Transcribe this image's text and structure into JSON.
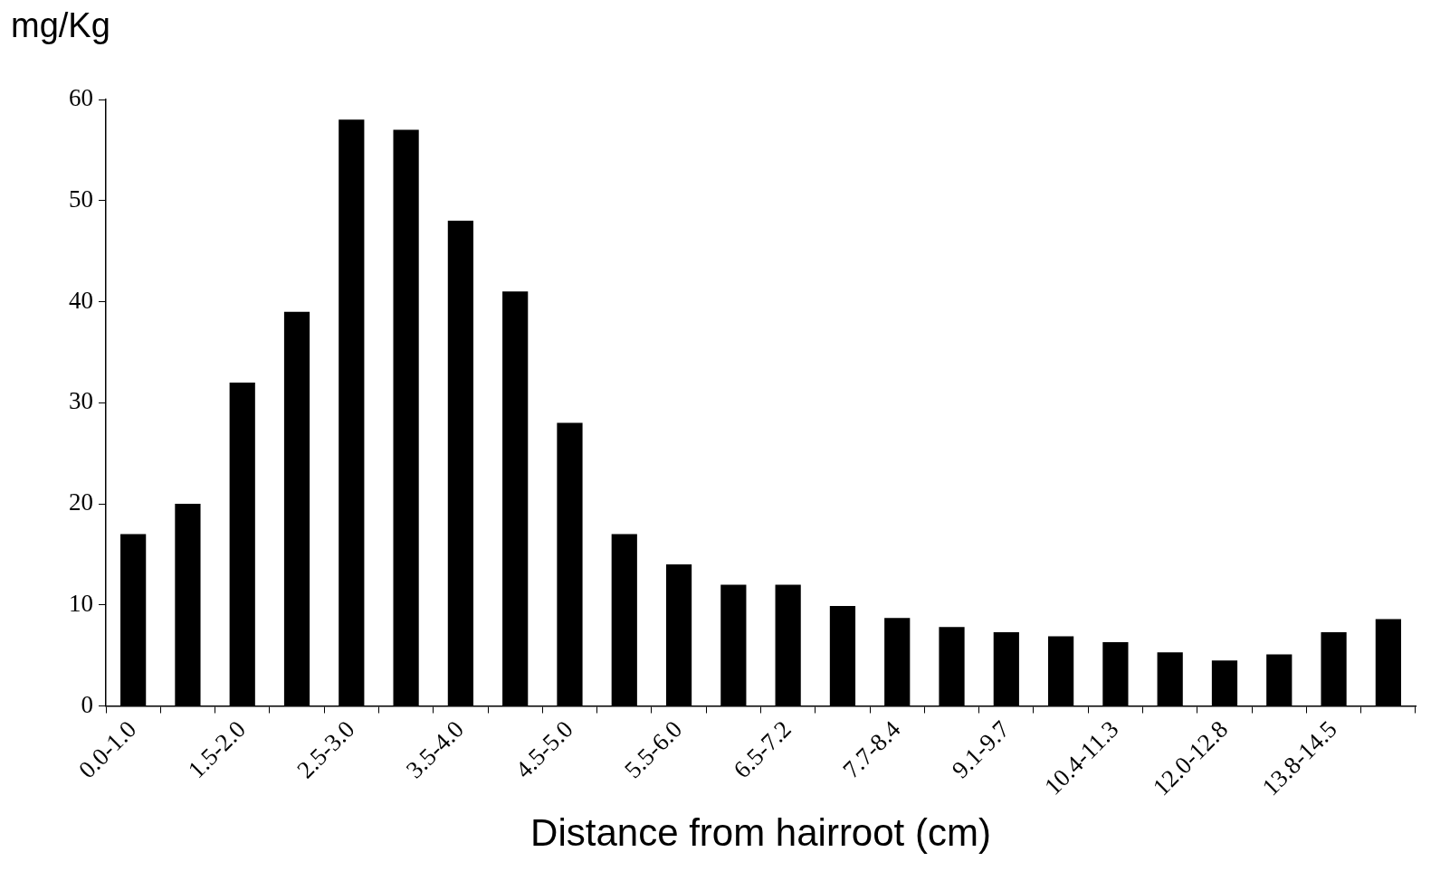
{
  "chart_data": {
    "type": "bar",
    "ylabel": "mg/Kg",
    "xlabel": "Distance from hairroot (cm)",
    "categories": [
      "0.0-1.0",
      null,
      "1.5-2.0",
      null,
      "2.5-3.0",
      null,
      "3.5-4.0",
      null,
      "4.5-5.0",
      null,
      "5.5-6.0",
      null,
      "6.5-7.2",
      null,
      "7.7-8.4",
      null,
      "9.1-9.7",
      null,
      "10.4-11.3",
      null,
      "12.0-12.8",
      null,
      "13.8-14.5",
      null
    ],
    "values": [
      17,
      20,
      32,
      39,
      58,
      57,
      48,
      41,
      28,
      17,
      14,
      12,
      12,
      9.9,
      8.7,
      7.8,
      7.3,
      6.9,
      6.3,
      5.3,
      4.5,
      5.1,
      7.3,
      8.6
    ],
    "color": "#000000",
    "ylim": [
      0,
      60
    ],
    "yticks": [
      0,
      10,
      20,
      30,
      40,
      50,
      60
    ],
    "grid": false,
    "legend": false
  }
}
